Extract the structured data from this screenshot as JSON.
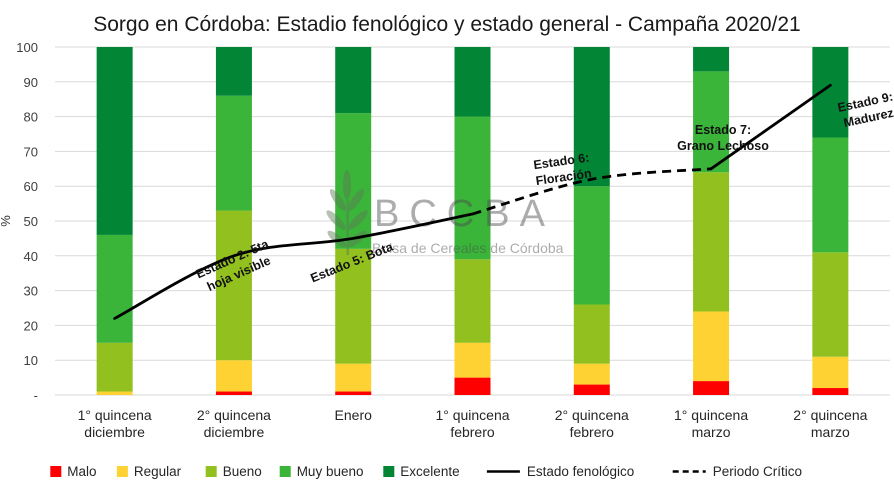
{
  "chart_data": {
    "type": "bar",
    "stacked": true,
    "title": "Sorgo en Córdoba: Estadio fenológico y estado general - Campaña 2020/21",
    "ylabel": "%",
    "ylim": [
      0,
      100
    ],
    "yticks": [
      "-",
      "10",
      "20",
      "30",
      "40",
      "50",
      "60",
      "70",
      "80",
      "90",
      "100"
    ],
    "grid": true,
    "legend_position": "bottom",
    "categories": [
      [
        "1° quincena",
        "diciembre"
      ],
      [
        "2° quincena",
        "diciembre"
      ],
      [
        "Enero"
      ],
      [
        "1° quincena",
        "febrero"
      ],
      [
        "2° quincena",
        "febrero"
      ],
      [
        "1° quincena",
        "marzo"
      ],
      [
        "2° quincena",
        "marzo"
      ]
    ],
    "series": [
      {
        "name": "Malo",
        "color": "#ff0000",
        "values": [
          0,
          1,
          1,
          5,
          3,
          4,
          2
        ]
      },
      {
        "name": "Regular",
        "color": "#ffd234",
        "values": [
          1,
          9,
          8,
          10,
          6,
          20,
          9
        ]
      },
      {
        "name": "Bueno",
        "color": "#92c01f",
        "values": [
          14,
          43,
          33,
          24,
          17,
          40,
          30
        ]
      },
      {
        "name": "Muy bueno",
        "color": "#3bb43a",
        "values": [
          31,
          33,
          39,
          41,
          34,
          29,
          33
        ]
      },
      {
        "name": "Excelente",
        "color": "#028534",
        "values": [
          54,
          14,
          19,
          20,
          40,
          7,
          26
        ]
      }
    ],
    "lines": [
      {
        "name": "Estado fenológico",
        "style": "solid",
        "color": "#000000",
        "x": [
          0,
          1,
          2,
          3
        ],
        "values": [
          22,
          40,
          45,
          52
        ]
      },
      {
        "name": "Periodo Crítico",
        "style": "dashed",
        "color": "#000000",
        "x": [
          3,
          4,
          5
        ],
        "values": [
          52,
          62,
          65
        ]
      },
      {
        "name": "Estado fenológico",
        "style": "solid",
        "color": "#000000",
        "x": [
          5,
          6
        ],
        "values": [
          65,
          89
        ]
      }
    ],
    "annotations": [
      {
        "lines": [
          "Estado 2: 5ta",
          "hoja visible"
        ],
        "x": 1,
        "y": 38,
        "rotate": -24
      },
      {
        "lines": [
          "Estado 5: Bota"
        ],
        "x": 2,
        "y": 37,
        "rotate": -22
      },
      {
        "lines": [
          "Estado 6:",
          "Floración"
        ],
        "x": 3.75,
        "y": 66,
        "rotate": -8
      },
      {
        "lines": [
          "Estado 7:",
          "Grano Lechoso"
        ],
        "x": 5.1,
        "y": 75,
        "rotate": 0
      },
      {
        "lines": [
          "Estado 9:",
          "Madurez"
        ],
        "x": 6.3,
        "y": 83,
        "rotate": -12
      }
    ]
  },
  "watermark": {
    "name": "BCCBA",
    "subtitle": "Bolsa de Cereales de Córdoba"
  }
}
